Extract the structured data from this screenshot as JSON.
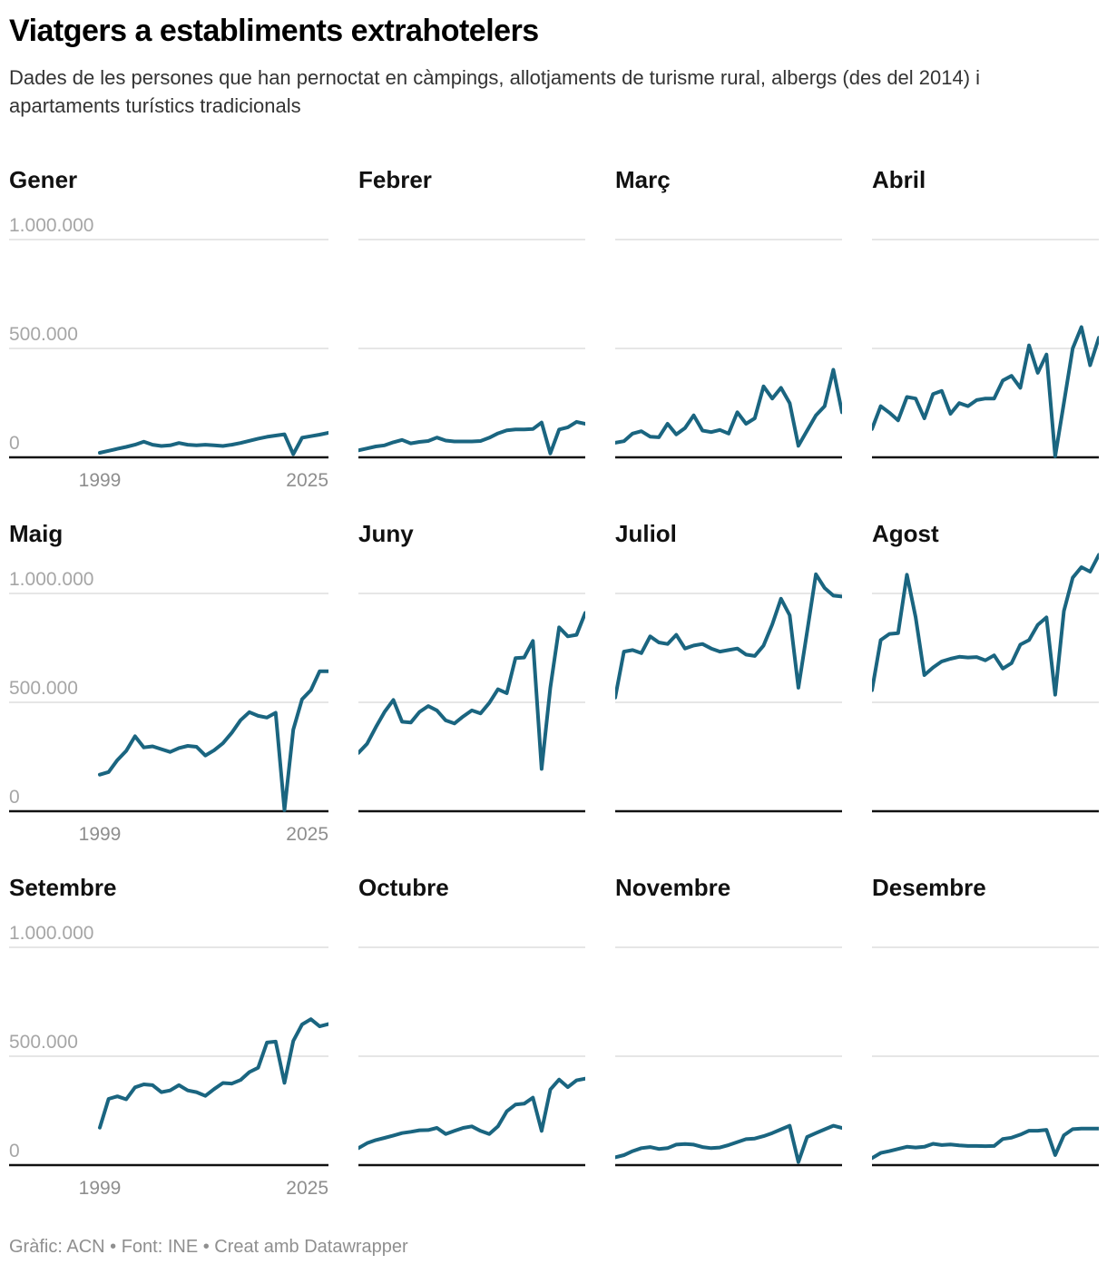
{
  "header": {
    "title": "Viatgers a establiments extrahotelers",
    "subtitle": "Dades de les persones que han pernoctat en càmpings, allotjaments de turisme rural, albergs (des del 2014) i apartaments turístics tradicionals"
  },
  "footer": {
    "text": "Gràfic: ACN • Font: INE • Creat amb Datawrapper"
  },
  "axis": {
    "y_tick_labels": [
      "1.000.000",
      "500.000",
      "0"
    ],
    "x_tick_labels": [
      "1999",
      "2025"
    ]
  },
  "colors": {
    "line": "#1a6580",
    "grid": "#dedede",
    "axis": "#111111",
    "y_tick_label": "#a6a6a6",
    "x_tick_label": "#8e8e8e",
    "title": "#000000",
    "subtitle": "#333333",
    "footer": "#8f8f8f"
  },
  "chart_data": {
    "type": "line",
    "title": "Viatgers a establiments extrahotelers",
    "unit": "viatgers",
    "x": [
      1999,
      2000,
      2001,
      2002,
      2003,
      2004,
      2005,
      2006,
      2007,
      2008,
      2009,
      2010,
      2011,
      2012,
      2013,
      2014,
      2015,
      2016,
      2017,
      2018,
      2019,
      2020,
      2021,
      2022,
      2023,
      2024,
      2025
    ],
    "x_tick_labels": [
      "1999",
      "2025"
    ],
    "y_gridlines": [
      0,
      500000,
      1000000
    ],
    "y_tick_labels": [
      "0",
      "500.000",
      "1.000.000"
    ],
    "ylim": [
      0,
      1200000
    ],
    "legend": "none",
    "panels": [
      {
        "label": "Gener",
        "values": [
          21000,
          30000,
          39000,
          48000,
          58000,
          72000,
          58000,
          52000,
          55000,
          66000,
          58000,
          55000,
          58000,
          55000,
          52000,
          58000,
          66000,
          76000,
          86000,
          94000,
          100000,
          106000,
          14000,
          90000,
          97000,
          104000,
          113000
        ]
      },
      {
        "label": "Febrer",
        "values": [
          32000,
          41000,
          50000,
          55000,
          69000,
          80000,
          64000,
          71000,
          75000,
          91000,
          77000,
          73000,
          73000,
          73000,
          75000,
          90000,
          110000,
          124000,
          128000,
          128000,
          130000,
          160000,
          18000,
          128000,
          138000,
          163000,
          154000
        ]
      },
      {
        "label": "Març",
        "values": [
          67000,
          74000,
          109000,
          120000,
          95000,
          92000,
          154000,
          105000,
          134000,
          193000,
          123000,
          116000,
          126000,
          109000,
          207000,
          154000,
          179000,
          326000,
          270000,
          319000,
          249000,
          53000,
          123000,
          193000,
          235000,
          402000,
          207000
        ]
      },
      {
        "label": "Abril",
        "values": [
          130000,
          235000,
          205000,
          170000,
          277000,
          270000,
          179000,
          291000,
          305000,
          200000,
          249000,
          235000,
          263000,
          270000,
          270000,
          353000,
          374000,
          319000,
          514000,
          388000,
          472000,
          5000,
          250000,
          500000,
          598000,
          423000,
          549000
        ]
      },
      {
        "label": "Maig",
        "values": [
          168000,
          180000,
          235000,
          277000,
          344000,
          293000,
          298000,
          285000,
          272000,
          290000,
          300000,
          296000,
          256000,
          280000,
          312000,
          360000,
          418000,
          455000,
          438000,
          430000,
          452000,
          5000,
          374000,
          514000,
          556000,
          643000,
          643000
        ]
      },
      {
        "label": "Juny",
        "values": [
          268000,
          310000,
          386000,
          456000,
          511000,
          411000,
          407000,
          456000,
          483000,
          463000,
          417000,
          403000,
          435000,
          463000,
          449000,
          497000,
          560000,
          542000,
          703000,
          706000,
          782000,
          194000,
          567000,
          844000,
          803000,
          810000,
          911000
        ]
      },
      {
        "label": "Juliol",
        "values": [
          522000,
          733000,
          740000,
          726000,
          803000,
          775000,
          768000,
          810000,
          747000,
          761000,
          768000,
          747000,
          733000,
          740000,
          747000,
          719000,
          713000,
          761000,
          858000,
          976000,
          900000,
          567000,
          824000,
          1088000,
          1025000,
          990000,
          986000
        ]
      },
      {
        "label": "Agost",
        "values": [
          556000,
          786000,
          814000,
          818000,
          1086000,
          891000,
          625000,
          660000,
          688000,
          700000,
          709000,
          706000,
          708000,
          693000,
          716000,
          655000,
          680000,
          765000,
          786000,
          856000,
          890000,
          535000,
          919000,
          1072000,
          1121000,
          1100000,
          1177000
        ]
      },
      {
        "label": "Setembre",
        "values": [
          172000,
          304000,
          316000,
          302000,
          357000,
          371000,
          367000,
          335000,
          343000,
          367000,
          343000,
          335000,
          318000,
          349000,
          377000,
          374000,
          391000,
          427000,
          447000,
          563000,
          567000,
          378000,
          570000,
          646000,
          670000,
          637000,
          648000
        ]
      },
      {
        "label": "Octubre",
        "values": [
          78000,
          101000,
          115000,
          125000,
          136000,
          147000,
          153000,
          160000,
          161000,
          171000,
          143000,
          157000,
          171000,
          178000,
          157000,
          143000,
          178000,
          247000,
          278000,
          282000,
          310000,
          157000,
          347000,
          393000,
          358000,
          389000,
          397000
        ]
      },
      {
        "label": "Novembre",
        "values": [
          36000,
          46000,
          64000,
          78000,
          83000,
          74000,
          78000,
          94000,
          97000,
          94000,
          83000,
          78000,
          81000,
          92000,
          106000,
          119000,
          122000,
          133000,
          147000,
          164000,
          181000,
          14000,
          129000,
          147000,
          164000,
          181000,
          171000
        ]
      },
      {
        "label": "Desembre",
        "values": [
          32000,
          56000,
          64000,
          74000,
          84000,
          81000,
          84000,
          98000,
          92000,
          95000,
          91000,
          88000,
          88000,
          87000,
          88000,
          120000,
          126000,
          140000,
          158000,
          158000,
          162000,
          46000,
          137000,
          165000,
          168000,
          168000,
          168000
        ]
      }
    ]
  }
}
